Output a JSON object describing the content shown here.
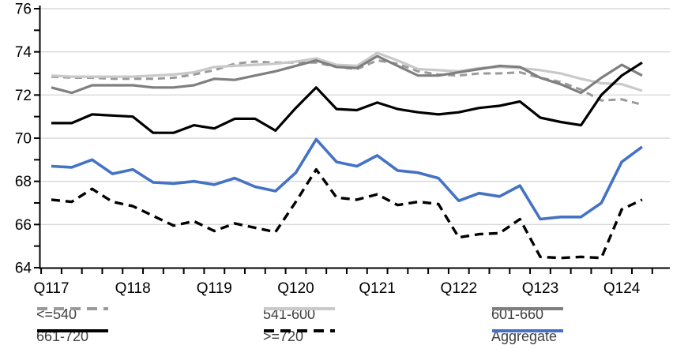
{
  "chart_data": {
    "type": "line",
    "title": "",
    "n_points": 30,
    "x_axis": {
      "tick_labels": [
        "Q117",
        "Q118",
        "Q119",
        "Q120",
        "Q121",
        "Q122",
        "Q123",
        "Q124"
      ],
      "labeled_point_indices": [
        0,
        4,
        8,
        12,
        16,
        20,
        24,
        28
      ],
      "quarters": [
        "Q1'17",
        "Q2'17",
        "Q3'17",
        "Q4'17",
        "Q1'18",
        "Q2'18",
        "Q3'18",
        "Q4'18",
        "Q1'19",
        "Q2'19",
        "Q3'19",
        "Q4'19",
        "Q1'20",
        "Q2'20",
        "Q3'20",
        "Q4'20",
        "Q1'21",
        "Q2'21",
        "Q3'21",
        "Q4'21",
        "Q1'22",
        "Q2'22",
        "Q3'22",
        "Q4'22",
        "Q1'23",
        "Q2'23",
        "Q3'23",
        "Q4'23",
        "Q1'24",
        "Q2'24"
      ]
    },
    "y_axis": {
      "min": 64,
      "max": 76,
      "major_step": 2,
      "minor_step": 1,
      "tick_labels": [
        "64",
        "66",
        "68",
        "70",
        "72",
        "74",
        "76"
      ]
    },
    "grid": true,
    "gridline_color": "#d9d9d9",
    "axis_color": "#000000",
    "legend_position": "bottom",
    "series": [
      {
        "name": "<=540",
        "color": "#9a9a9a",
        "dash": "9 6",
        "width": 3,
        "values": [
          72.85,
          72.8,
          72.8,
          72.75,
          72.75,
          72.75,
          72.8,
          72.95,
          73.15,
          73.45,
          73.55,
          73.5,
          73.5,
          73.5,
          73.3,
          73.2,
          73.6,
          73.45,
          73.1,
          72.95,
          72.9,
          73.0,
          73.0,
          73.05,
          72.8,
          72.6,
          72.25,
          71.75,
          71.8,
          71.55
        ]
      },
      {
        "name": "541-600",
        "color": "#c9c9c9",
        "dash": null,
        "width": 3.2,
        "values": [
          72.9,
          72.85,
          72.85,
          72.85,
          72.85,
          72.9,
          72.95,
          73.05,
          73.3,
          73.35,
          73.4,
          73.45,
          73.55,
          73.7,
          73.4,
          73.35,
          73.95,
          73.6,
          73.2,
          73.15,
          73.1,
          73.25,
          73.3,
          73.25,
          73.15,
          73.0,
          72.75,
          72.55,
          72.5,
          72.2
        ]
      },
      {
        "name": "601-660",
        "color": "#7f7f7f",
        "dash": null,
        "width": 3.2,
        "values": [
          72.35,
          72.1,
          72.45,
          72.45,
          72.45,
          72.35,
          72.35,
          72.45,
          72.75,
          72.7,
          72.9,
          73.1,
          73.35,
          73.6,
          73.3,
          73.25,
          73.8,
          73.35,
          72.9,
          72.9,
          73.05,
          73.2,
          73.35,
          73.3,
          72.8,
          72.5,
          72.1,
          72.8,
          73.4,
          72.9
        ]
      },
      {
        "name": "661-720",
        "color": "#000000",
        "dash": null,
        "width": 3.2,
        "values": [
          70.7,
          70.7,
          71.1,
          71.05,
          71.0,
          70.25,
          70.25,
          70.6,
          70.45,
          70.9,
          70.9,
          70.35,
          71.4,
          72.35,
          71.35,
          71.3,
          71.65,
          71.35,
          71.2,
          71.1,
          71.2,
          71.4,
          71.5,
          71.7,
          70.95,
          70.75,
          70.6,
          72.0,
          72.9,
          73.5
        ]
      },
      {
        "name": ">=720",
        "color": "#000000",
        "dash": "11 7",
        "width": 3.4,
        "values": [
          67.15,
          67.05,
          67.65,
          67.05,
          66.85,
          66.4,
          65.95,
          66.15,
          65.7,
          66.05,
          65.85,
          65.65,
          67.05,
          68.55,
          67.25,
          67.15,
          67.4,
          66.9,
          67.05,
          66.95,
          65.4,
          65.55,
          65.6,
          66.25,
          64.5,
          64.45,
          64.5,
          64.45,
          66.7,
          67.15
        ]
      },
      {
        "name": "Aggregate",
        "color": "#4472c4",
        "dash": null,
        "width": 3.6,
        "values": [
          68.7,
          68.65,
          69.0,
          68.35,
          68.55,
          67.95,
          67.9,
          68.0,
          67.85,
          68.15,
          67.75,
          67.55,
          68.4,
          69.95,
          68.9,
          68.7,
          69.2,
          68.5,
          68.4,
          68.15,
          67.1,
          67.45,
          67.3,
          67.8,
          66.25,
          66.35,
          66.35,
          67.0,
          68.9,
          69.6
        ]
      }
    ]
  }
}
